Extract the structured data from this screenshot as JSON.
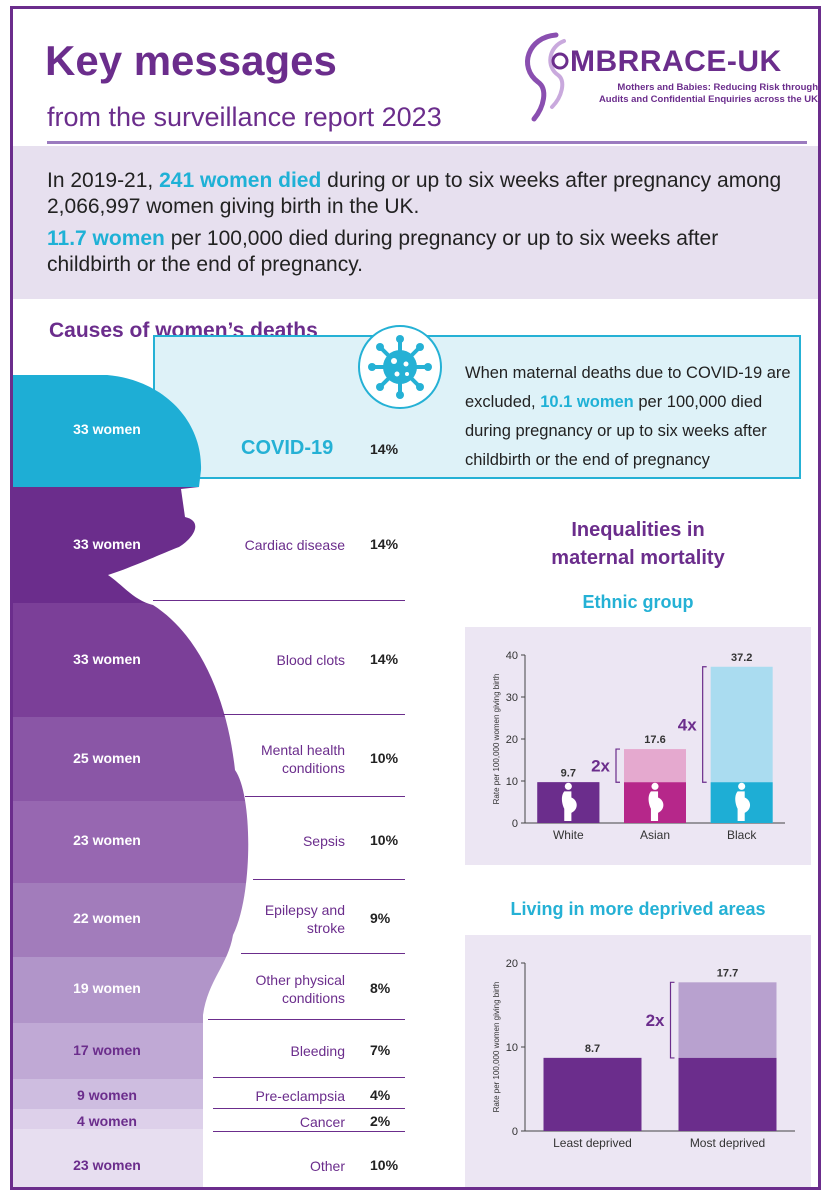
{
  "header": {
    "title": "Key messages",
    "subtitle": "from the surveillance report 2023",
    "logo_name": "MBRRACE-UK",
    "logo_tagline_1": "Mothers and Babies: Reducing Risk through",
    "logo_tagline_2": "Audits and Confidential Enquiries across the UK"
  },
  "summary": {
    "line1_a": "In 2019-21, ",
    "line1_hl": "241 women died",
    "line1_b": " during or up to six weeks after pregnancy among 2,066,997 women giving birth in the UK.",
    "line2_hl": "11.7 women",
    "line2_b": " per 100,000 died during pregnancy or up to six weeks after childbirth or the end of pregnancy."
  },
  "causes": {
    "heading": "Causes of women’s deaths",
    "covid_note_a": "When maternal deaths due to COVID-19 are excluded, ",
    "covid_note_hl": "10.1 women",
    "covid_note_b": " per 100,000 died during pregnancy or up to six weeks after childbirth or the end of pregnancy",
    "items": [
      {
        "count": "33 women",
        "cause": "COVID-19",
        "pct": "14%"
      },
      {
        "count": "33 women",
        "cause": "Cardiac disease",
        "pct": "14%"
      },
      {
        "count": "33 women",
        "cause": "Blood clots",
        "pct": "14%"
      },
      {
        "count": "25 women",
        "cause_1": "Mental health",
        "cause_2": "conditions",
        "pct": "10%"
      },
      {
        "count": "23 women",
        "cause": "Sepsis",
        "pct": "10%"
      },
      {
        "count": "22 women",
        "cause_1": "Epilepsy and",
        "cause_2": "stroke",
        "pct": "9%"
      },
      {
        "count": "19 women",
        "cause_1": "Other physical",
        "cause_2": "conditions",
        "pct": "8%"
      },
      {
        "count": "17 women",
        "cause": "Bleeding",
        "pct": "7%"
      },
      {
        "count": "9 women",
        "cause": "Pre-eclampsia",
        "pct": "4%"
      },
      {
        "count": "4 women",
        "cause": "Cancer",
        "pct": "2%"
      },
      {
        "count": "23 women",
        "cause": "Other",
        "pct": "10%"
      }
    ]
  },
  "inequalities_heading_1": "Inequalities in",
  "inequalities_heading_2": "maternal mortality",
  "colors": {
    "purple": "#6b2d8c",
    "cyan": "#25b1d5",
    "magenta": "#b6278a"
  },
  "chart_data": [
    {
      "type": "bar",
      "title": "Ethnic group",
      "ylabel": "Rate per 100,000 women giving birth",
      "categories": [
        "White",
        "Asian",
        "Black"
      ],
      "values": [
        9.7,
        17.6,
        37.2
      ],
      "data_labels": [
        "9.7",
        "17.6",
        "37.2"
      ],
      "ylim": [
        0,
        40
      ],
      "yticks": [
        0,
        10,
        20,
        30,
        40
      ],
      "baseline_value": 9.7,
      "annotations": [
        {
          "text": "2x",
          "category": "Asian"
        },
        {
          "text": "4x",
          "category": "Black"
        }
      ],
      "bar_colors": [
        "#6b2d8c",
        "#b6278a",
        "#1eaed5"
      ],
      "upper_colors": [
        "#6b2d8c",
        "#e5a9cf",
        "#aadcf0"
      ]
    },
    {
      "type": "bar",
      "title": "Living in more deprived areas",
      "ylabel": "Rate per 100,000 women giving birth",
      "categories": [
        "Least deprived",
        "Most deprived"
      ],
      "values": [
        8.7,
        17.7
      ],
      "data_labels": [
        "8.7",
        "17.7"
      ],
      "ylim": [
        0,
        20
      ],
      "yticks": [
        0,
        10,
        20
      ],
      "baseline_value": 8.7,
      "annotations": [
        {
          "text": "2x",
          "category": "Most deprived"
        }
      ],
      "bar_colors": [
        "#6b2d8c",
        "#6b2d8c"
      ],
      "upper_colors": [
        "#6b2d8c",
        "#b8a1cf"
      ]
    }
  ]
}
